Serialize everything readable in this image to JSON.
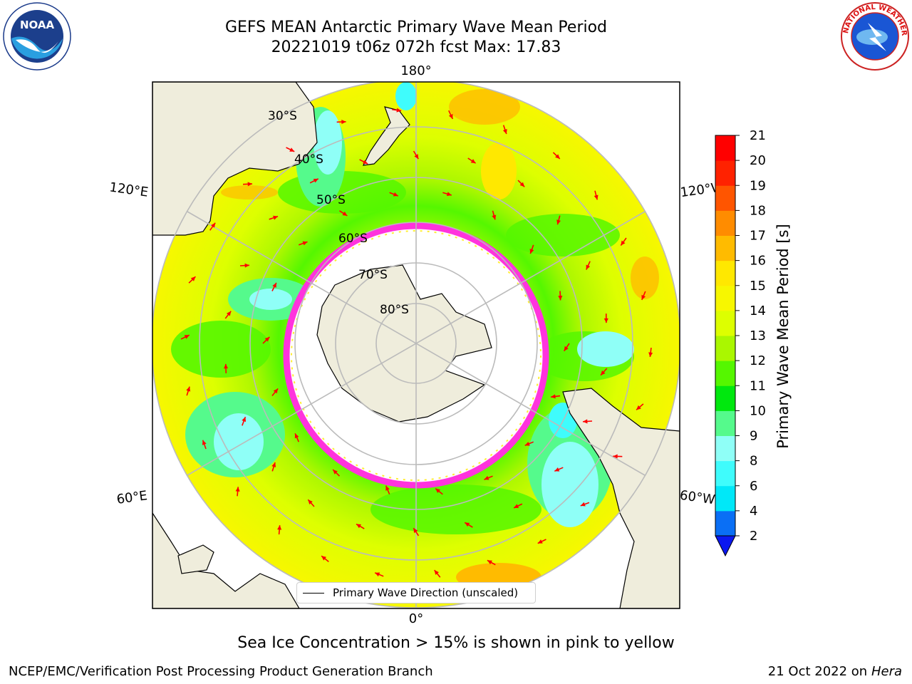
{
  "header": {
    "title_line1": "GEFS MEAN Antarctic Primary Wave Mean Period",
    "title_line2": "20221019 t06z 072h fcst   Max: 17.83"
  },
  "logos": {
    "left": {
      "icon": "noaa-logo-icon",
      "text": "NOAA",
      "ring_text": "NATIONAL OCEANIC AND ATMOSPHERIC ADMINISTRATION · U.S. DEPARTMENT OF COMMERCE"
    },
    "right": {
      "icon": "nws-logo-icon",
      "ring_text": "NATIONAL WEATHER SERVICE"
    }
  },
  "map": {
    "projection": "south-polar-stereographic",
    "lon_labels": {
      "top": "180°",
      "bottom": "0°",
      "upper_left": "120°E",
      "upper_right": "120°W",
      "lower_left": "60°E",
      "lower_right": "60°W"
    },
    "lat_labels": [
      "30°S",
      "40°S",
      "50°S",
      "60°S",
      "70°S",
      "80°S"
    ],
    "colors": {
      "land": "#efeddc",
      "ice_edge": "#ff33dd",
      "arrow": "#ff0000",
      "grid": "#bbbbbb",
      "no_data": "#ffffff"
    },
    "legend_label": "Primary Wave Direction (unscaled)"
  },
  "colorbar": {
    "title": "Primary Wave Mean Period [s]",
    "ticks": [
      "2",
      "4",
      "6",
      "8",
      "9",
      "10",
      "11",
      "12",
      "13",
      "14",
      "15",
      "16",
      "17",
      "18",
      "19",
      "20",
      "21"
    ],
    "colors": [
      "#0a6ff5",
      "#00e8f8",
      "#3ffcfc",
      "#8ffff7",
      "#55fa8c",
      "#00e80e",
      "#55f700",
      "#aaf700",
      "#ddff00",
      "#f7f700",
      "#ffe800",
      "#ffbb00",
      "#ff8c00",
      "#ff5500",
      "#ff2200",
      "#ff0000"
    ],
    "extend": "min",
    "under_color": "#0b18f0"
  },
  "annotation": "Sea Ice Concentration > 15% is shown in pink to yellow",
  "footer": {
    "left": "NCEP/EMC/Verification Post Processing Product Generation Branch",
    "date": "21 Oct 2022 on",
    "machine": "Hera"
  }
}
